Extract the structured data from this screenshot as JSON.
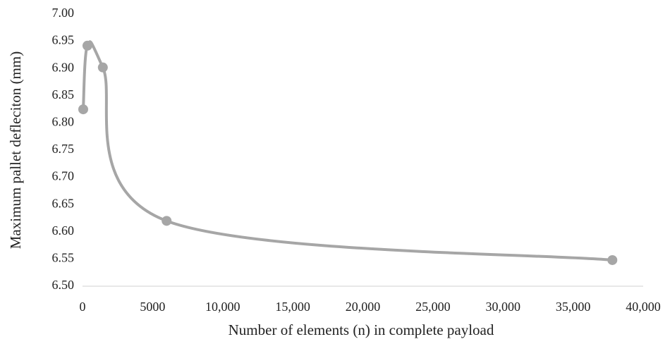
{
  "chart_data": {
    "type": "line",
    "smooth": true,
    "x_label": "Number of elements (n) in  complete payload",
    "y_label": "Maximum pallet defleciton (mm)",
    "x": [
      50,
      350,
      1450,
      6000,
      37800
    ],
    "series": [
      {
        "color": "#a6a6a6",
        "values": [
          6.825,
          6.942,
          6.902,
          6.62,
          6.548
        ]
      }
    ],
    "xlim": [
      0,
      40000
    ],
    "xticks": [
      0,
      5000,
      {
        "value": 10000,
        "label": "10,000"
      },
      {
        "value": 15000,
        "label": "15,000"
      },
      {
        "value": 20000,
        "label": "20,000"
      },
      {
        "value": 25000,
        "label": "25,000"
      },
      {
        "value": 30000,
        "label": "30,000"
      },
      {
        "value": 35000,
        "label": "35,000"
      },
      {
        "value": 40000,
        "label": "40,000"
      }
    ],
    "ylim": [
      6.5,
      7.0
    ],
    "yticks": [
      {
        "value": 6.5,
        "label": "6.50"
      },
      {
        "value": 6.55,
        "label": "6.55"
      },
      {
        "value": 6.6,
        "label": "6.60"
      },
      {
        "value": 6.65,
        "label": "6.65"
      },
      {
        "value": 6.7,
        "label": "6.70"
      },
      {
        "value": 6.75,
        "label": "6.75"
      },
      {
        "value": 6.8,
        "label": "6.80"
      },
      {
        "value": 6.85,
        "label": "6.85"
      },
      {
        "value": 6.9,
        "label": "6.90"
      },
      {
        "value": 6.95,
        "label": "6.95"
      },
      {
        "value": 7.0,
        "label": "7.00"
      }
    ],
    "grid": false
  }
}
